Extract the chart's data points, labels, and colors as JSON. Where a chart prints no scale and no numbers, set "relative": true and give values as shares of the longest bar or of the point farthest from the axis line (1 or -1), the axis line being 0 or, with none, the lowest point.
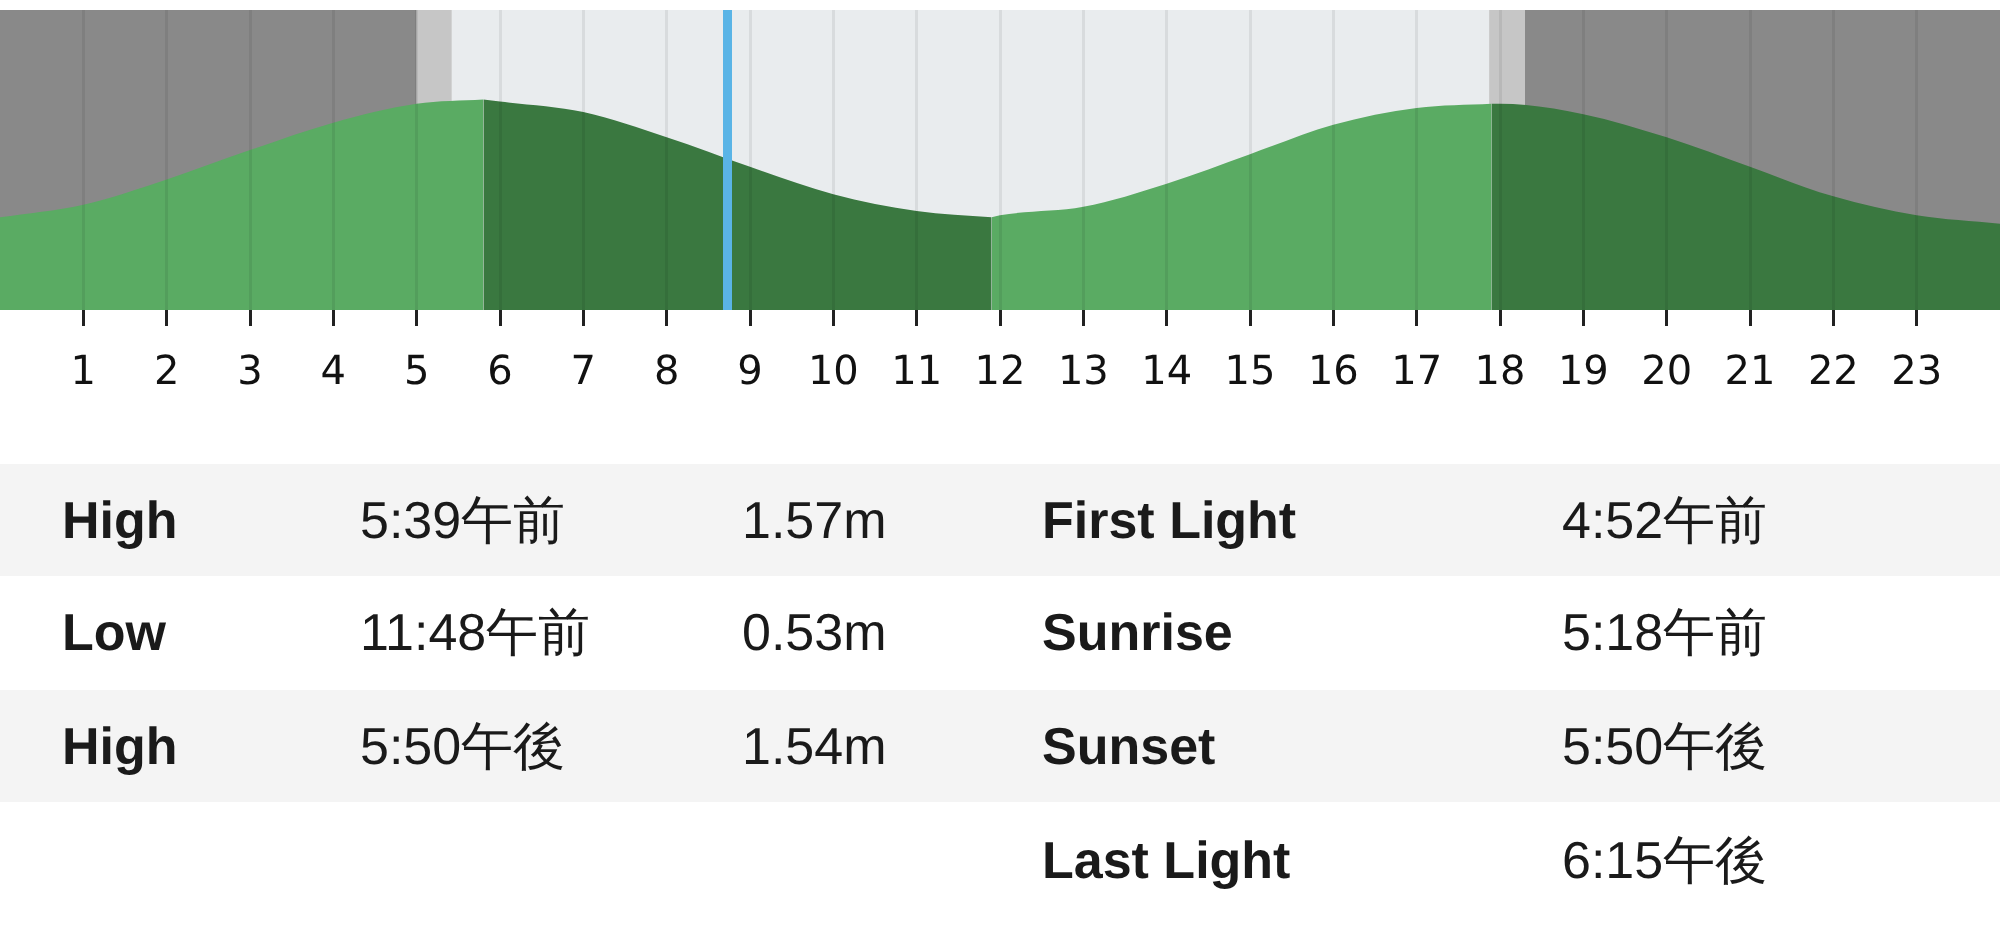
{
  "chart_data": {
    "type": "area",
    "relative": true,
    "xlim": [
      0,
      24
    ],
    "xticks": [
      1,
      2,
      3,
      4,
      5,
      6,
      7,
      8,
      9,
      10,
      11,
      12,
      13,
      14,
      15,
      16,
      17,
      18,
      19,
      20,
      21,
      22,
      23
    ],
    "grid": "x",
    "series": [
      {
        "color": "#5aab63",
        "x": [
          0,
          1,
          2,
          3,
          4,
          5,
          5.8
        ],
        "values": [
          0.44,
          0.5,
          0.62,
          0.76,
          0.89,
          0.98,
          1
        ]
      },
      {
        "color": "#3a7840",
        "x": [
          5.8,
          6,
          7,
          8,
          9,
          10,
          11,
          11.9
        ],
        "values": [
          1,
          0.99,
          0.94,
          0.82,
          0.68,
          0.55,
          0.47,
          0.44
        ]
      },
      {
        "color": "#5aab63",
        "x": [
          11.9,
          12,
          13,
          14,
          15,
          16,
          17,
          17.9
        ],
        "values": [
          0.44,
          0.45,
          0.49,
          0.6,
          0.74,
          0.88,
          0.96,
          0.98
        ]
      },
      {
        "color": "#3a7840",
        "x": [
          17.9,
          18,
          19,
          20,
          21,
          22,
          23,
          24
        ],
        "values": [
          0.98,
          0.98,
          0.93,
          0.82,
          0.68,
          0.54,
          0.45,
          0.41
        ]
      }
    ],
    "bands": [
      {
        "axis": "x",
        "from": 0,
        "to": 5.0,
        "color": "#898989"
      },
      {
        "axis": "x",
        "from": 5.0,
        "to": 5.42,
        "color": "#c6c6c6"
      },
      {
        "axis": "x",
        "from": 17.87,
        "to": 18.3,
        "color": "#c6c6c6"
      },
      {
        "axis": "x",
        "from": 18.3,
        "to": 24,
        "color": "#898989"
      }
    ],
    "ref_lines": [
      {
        "axis": "x",
        "value": 8.73,
        "color": "#5ab4e6"
      }
    ],
    "annotations": [
      "High",
      "5:39午前",
      "1.57m",
      "Low",
      "11:48午前",
      "0.53m",
      "High",
      "5:50午後",
      "1.54m",
      "First Light",
      "4:52午前",
      "Sunrise",
      "5:18午前",
      "Sunset",
      "5:50午後",
      "Last Light",
      "6:15午後"
    ]
  }
}
